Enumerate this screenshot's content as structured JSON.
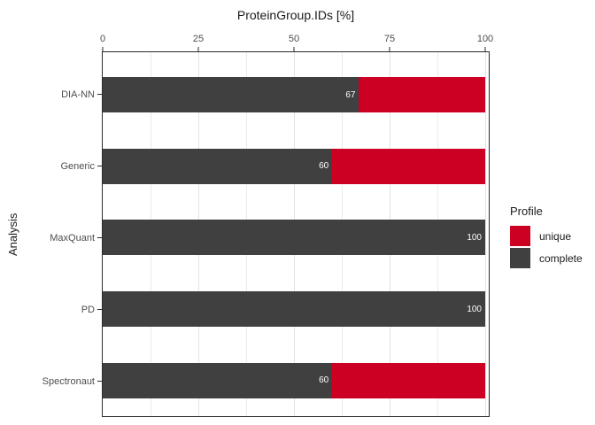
{
  "chart_data": {
    "type": "bar",
    "orientation": "horizontal",
    "stacked": true,
    "title": "ProteinGroup.IDs [%]",
    "xlabel": "ProteinGroup.IDs [%]",
    "ylabel": "Analysis",
    "categories": [
      "DIA-NN",
      "Generic",
      "MaxQuant",
      "PD",
      "Spectronaut"
    ],
    "series": [
      {
        "name": "complete",
        "color": "#404040",
        "values": [
          67,
          60,
          100,
          100,
          60
        ]
      },
      {
        "name": "unique",
        "color": "#CC0022",
        "values": [
          33,
          40,
          0,
          0,
          40
        ]
      }
    ],
    "bar_value_labels": [
      "67",
      "60",
      "100",
      "100",
      "60"
    ],
    "x_ticks": [
      "0",
      "25",
      "50",
      "75",
      "100"
    ],
    "x_tick_values": [
      0,
      25,
      50,
      75,
      100
    ],
    "x_minor_tick_values": [
      12.5,
      37.5,
      62.5,
      87.5
    ],
    "xlim": [
      0,
      100
    ],
    "grid": {
      "vertical_major": true,
      "vertical_minor": true,
      "horizontal": false
    },
    "legend": {
      "title": "Profile",
      "position": "right",
      "entries": [
        {
          "label": "unique",
          "color": "#CC0022"
        },
        {
          "label": "complete",
          "color": "#404040"
        }
      ]
    },
    "colors": {
      "bar_complete": "#404040",
      "bar_unique": "#CC0022",
      "panel_border": "#2b2b2b",
      "grid_major": "#e2e2e2",
      "grid_minor": "#ebebeb",
      "axis_text": "#4d4d4d",
      "title_text": "#1a1a1a",
      "bar_label_text": "#ffffff"
    }
  }
}
